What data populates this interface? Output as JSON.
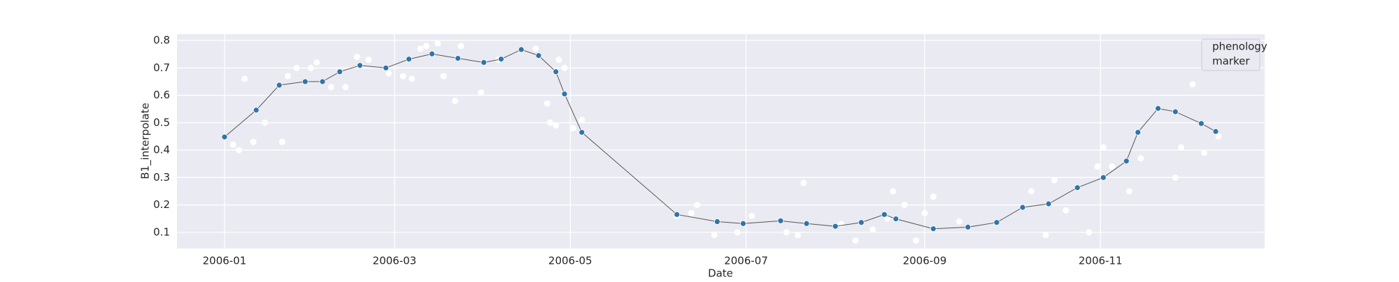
{
  "chart_data": {
    "type": "line_scatter",
    "x_label": "Date",
    "y_label": "B1_interpolate",
    "legend_title": [
      "phenology",
      "marker"
    ],
    "legend_position": "upper right",
    "grid": true,
    "xlim": [
      -16.5,
      361
    ],
    "ylim": [
      0.041,
      0.823
    ],
    "xticks": [
      {
        "value": 0,
        "label": "2006-01"
      },
      {
        "value": 59,
        "label": "2006-03"
      },
      {
        "value": 120,
        "label": "2006-05"
      },
      {
        "value": 181,
        "label": "2006-07"
      },
      {
        "value": 243,
        "label": "2006-09"
      },
      {
        "value": 304,
        "label": "2006-11"
      }
    ],
    "yticks": [
      0.1,
      0.2,
      0.3,
      0.4,
      0.5,
      0.6,
      0.7,
      0.8
    ],
    "series": [
      {
        "kind": "scatter",
        "color": "#ffffff",
        "x": [
          3,
          5,
          7,
          10,
          14,
          20,
          22,
          25,
          30,
          32,
          37,
          42,
          46,
          50,
          57,
          62,
          65,
          68,
          70,
          74,
          76,
          80,
          82,
          89,
          95,
          108,
          112,
          113,
          115,
          116,
          118,
          121,
          124,
          157,
          162,
          164,
          170,
          178,
          183,
          195,
          199,
          201,
          214,
          219,
          225,
          230,
          232,
          236,
          240,
          243,
          246,
          255,
          280,
          285,
          288,
          292,
          300,
          303,
          305,
          308,
          314,
          318,
          324,
          330,
          332,
          336,
          340,
          345
        ],
        "values": [
          0.42,
          0.4,
          0.66,
          0.43,
          0.5,
          0.43,
          0.67,
          0.7,
          0.7,
          0.72,
          0.63,
          0.63,
          0.74,
          0.73,
          0.68,
          0.67,
          0.66,
          0.77,
          0.78,
          0.79,
          0.67,
          0.58,
          0.78,
          0.61,
          0.73,
          0.77,
          0.57,
          0.5,
          0.49,
          0.73,
          0.7,
          0.48,
          0.51,
          0.16,
          0.17,
          0.2,
          0.09,
          0.1,
          0.16,
          0.1,
          0.09,
          0.28,
          0.13,
          0.07,
          0.11,
          0.15,
          0.25,
          0.2,
          0.07,
          0.17,
          0.23,
          0.14,
          0.25,
          0.09,
          0.29,
          0.18,
          0.1,
          0.34,
          0.41,
          0.34,
          0.25,
          0.37,
          0.55,
          0.3,
          0.41,
          0.64,
          0.39,
          0.45
        ]
      },
      {
        "kind": "line",
        "color": "#2e75a8",
        "line_color": "#555555",
        "x": [
          0,
          11,
          19,
          28,
          34,
          40,
          47,
          56,
          64,
          72,
          81,
          90,
          96,
          103,
          109,
          115,
          118,
          124,
          157,
          171,
          180,
          193,
          202,
          212,
          221,
          229,
          233,
          246,
          258,
          268,
          277,
          286,
          296,
          305,
          313,
          317,
          324,
          330,
          339,
          344
        ],
        "values": [
          0.448,
          0.546,
          0.637,
          0.65,
          0.65,
          0.686,
          0.709,
          0.7,
          0.732,
          0.751,
          0.735,
          0.72,
          0.732,
          0.767,
          0.745,
          0.686,
          0.605,
          0.465,
          0.165,
          0.139,
          0.132,
          0.142,
          0.132,
          0.122,
          0.136,
          0.165,
          0.149,
          0.113,
          0.119,
          0.136,
          0.191,
          0.204,
          0.263,
          0.3,
          0.36,
          0.465,
          0.552,
          0.54,
          0.497,
          0.468
        ]
      }
    ]
  }
}
